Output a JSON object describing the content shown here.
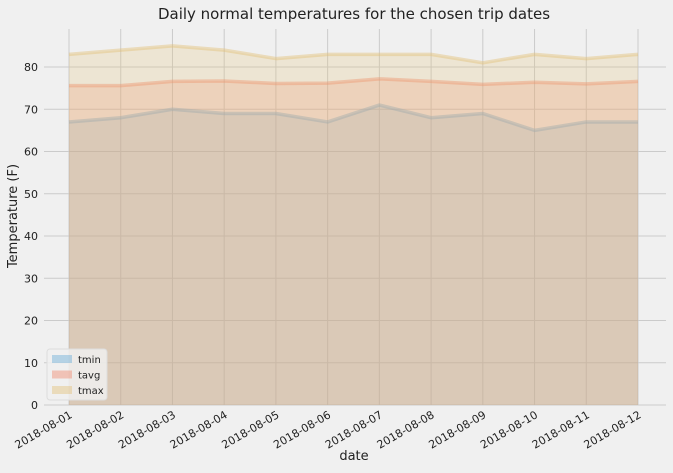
{
  "chart_data": {
    "type": "area",
    "title": "Daily normal temperatures for the chosen trip dates",
    "xlabel": "date",
    "ylabel": "Temperature (F)",
    "categories": [
      "2018-08-01",
      "2018-08-02",
      "2018-08-03",
      "2018-08-04",
      "2018-08-05",
      "2018-08-06",
      "2018-08-07",
      "2018-08-08",
      "2018-08-09",
      "2018-08-10",
      "2018-08-11",
      "2018-08-12"
    ],
    "series": [
      {
        "name": "tmin",
        "color": "#6baed6",
        "values": [
          67,
          68,
          70,
          69,
          69,
          67,
          71,
          68,
          69,
          65,
          67,
          67
        ]
      },
      {
        "name": "tavg",
        "color": "#f08a6e",
        "values": [
          75.6,
          75.6,
          76.6,
          76.7,
          76.1,
          76.2,
          77.2,
          76.6,
          75.9,
          76.4,
          76.0,
          76.6
        ]
      },
      {
        "name": "tmax",
        "color": "#e3c27a",
        "values": [
          83,
          84,
          85,
          84,
          82,
          83,
          83,
          83,
          81,
          83,
          82,
          83
        ]
      }
    ],
    "ylim": [
      0,
      89
    ],
    "yticks": [
      0,
      10,
      20,
      30,
      40,
      50,
      60,
      70,
      80
    ],
    "grid": true,
    "stacked": false,
    "legend_position": "lower-left"
  }
}
